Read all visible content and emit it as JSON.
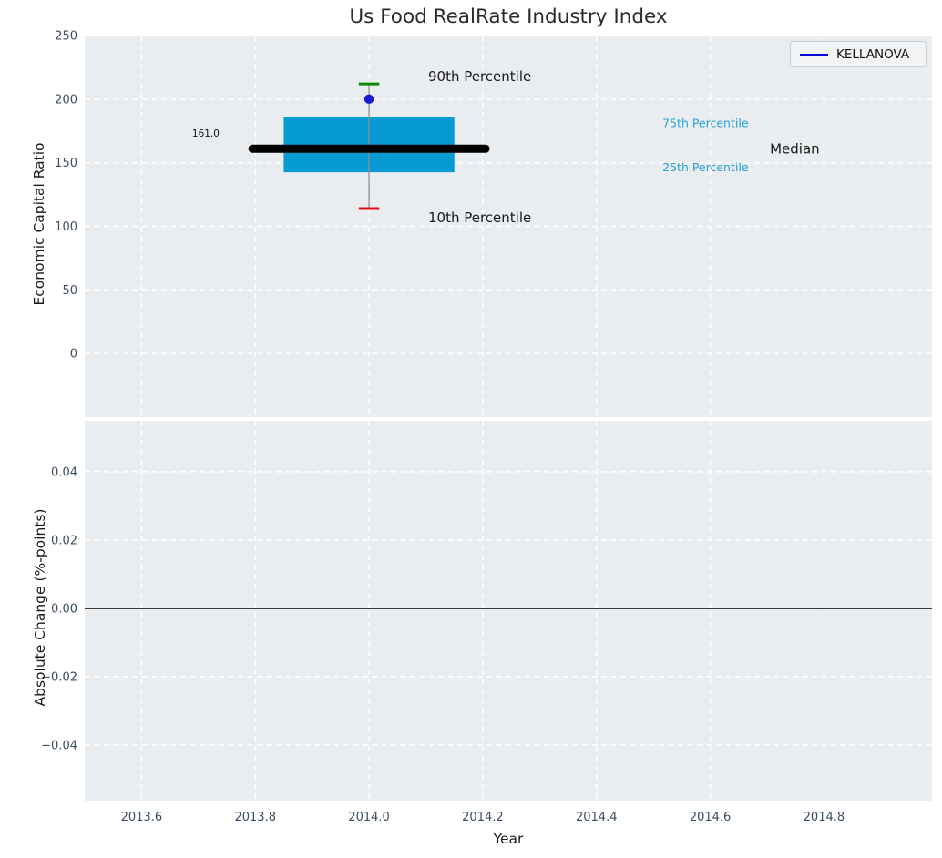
{
  "style": {
    "axes_bg": "#e9edf0",
    "grid_color": "#ffffff",
    "tick_color": "#3b4d63",
    "text_color": "#1a1a1a",
    "zero_line_color": "#000000"
  },
  "chart_data": [
    {
      "type": "boxplot",
      "title": "Us Food RealRate Industry Index",
      "ylabel": "Economic Capital Ratio",
      "legend": [
        {
          "label": "KELLANOVA",
          "color": "#0a0ae0"
        }
      ],
      "legend_position": "upper right",
      "grid": "dashed-white",
      "xlim": [
        2013.5,
        2014.99
      ],
      "ylim": [
        -50,
        250
      ],
      "yticks": [
        {
          "v": 250,
          "label": "250"
        },
        {
          "v": 200,
          "label": "200"
        },
        {
          "v": 150,
          "label": "150"
        },
        {
          "v": 100,
          "label": "100"
        },
        {
          "v": 50,
          "label": "50"
        },
        {
          "v": 0,
          "label": "0"
        }
      ],
      "grid_x": [
        2013.6,
        2013.8,
        2014.0,
        2014.2,
        2014.4,
        2014.6,
        2014.8
      ],
      "box": {
        "x": 2014.0,
        "p90": 212,
        "p75": 186,
        "median": 161,
        "p25": 142.5,
        "p10": 114,
        "company_value": 200,
        "median_annotation": "161.0",
        "box_halfwidth": 0.15,
        "median_halfwidth": 0.205,
        "cap_halfwidth": 0.018,
        "box_color": "#079ad3",
        "median_color": "#000000",
        "cap_top_color": "#0a8a0a",
        "cap_bottom_color": "#e01010",
        "whisker_color": "#909090",
        "point_color": "#1c1cd6"
      },
      "annotations": [
        {
          "text": "90th Percentile",
          "x": 2014.104,
          "y": 218,
          "color": "#1a1a1a",
          "size": 15,
          "anchor": "start"
        },
        {
          "text": "10th Percentile",
          "x": 2014.104,
          "y": 107,
          "color": "#1a1a1a",
          "size": 15,
          "anchor": "start"
        },
        {
          "text": "75th Percentile",
          "x": 2014.516,
          "y": 181,
          "color": "#29a0d4",
          "size": 12.5,
          "anchor": "start"
        },
        {
          "text": "25th Percentile",
          "x": 2014.516,
          "y": 146.5,
          "color": "#29a0d4",
          "size": 12.5,
          "anchor": "start"
        },
        {
          "text": "Median",
          "x": 2014.705,
          "y": 161,
          "color": "#1a1a1a",
          "size": 15,
          "anchor": "start"
        },
        {
          "text": "161.0",
          "x": 2013.713,
          "y": 173,
          "color": "#111111",
          "size": 10.5,
          "anchor": "middle"
        }
      ]
    },
    {
      "type": "line",
      "ylabel": "Absolute Change (%-points)",
      "xlabel": "Year",
      "grid": "dashed-white",
      "xlim": [
        2013.5,
        2014.99
      ],
      "ylim": [
        -0.0563,
        0.0549
      ],
      "yticks": [
        {
          "v": 0.04,
          "label": "0.04"
        },
        {
          "v": 0.02,
          "label": "0.02"
        },
        {
          "v": 0.0,
          "label": "0.00"
        },
        {
          "v": -0.02,
          "label": "−0.02"
        },
        {
          "v": -0.04,
          "label": "−0.04"
        }
      ],
      "xticks": [
        {
          "v": 2013.6,
          "label": "2013.6"
        },
        {
          "v": 2013.8,
          "label": "2013.8"
        },
        {
          "v": 2014.0,
          "label": "2014.0"
        },
        {
          "v": 2014.2,
          "label": "2014.2"
        },
        {
          "v": 2014.4,
          "label": "2014.4"
        },
        {
          "v": 2014.6,
          "label": "2014.6"
        },
        {
          "v": 2014.8,
          "label": "2014.8"
        }
      ],
      "zero_line": {
        "y": 0.0
      },
      "series": []
    }
  ]
}
